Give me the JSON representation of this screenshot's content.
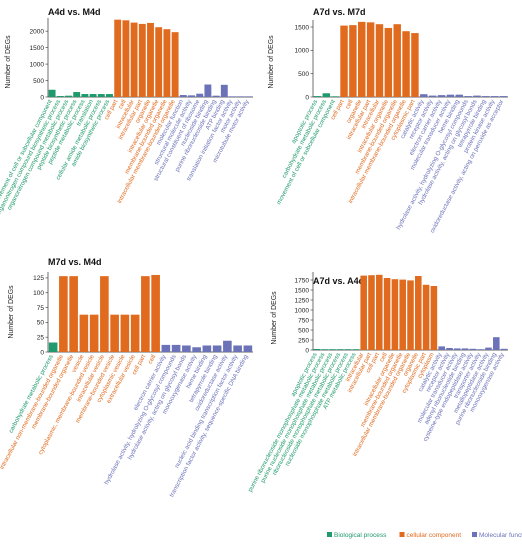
{
  "colors": {
    "bp": "#1f9a6c",
    "cc": "#e06b1f",
    "mf": "#6b72b8",
    "axis": "#333333"
  },
  "legend": [
    {
      "label": "Biological process",
      "key": "bp"
    },
    {
      "label": "cellular component",
      "key": "cc"
    },
    {
      "label": "Molecular function",
      "key": "mf"
    }
  ],
  "chart_data": [
    {
      "type": "bar",
      "title": "A4d vs. M4d",
      "ylabel": "Number of DEGs",
      "ylim": [
        0,
        2400
      ],
      "yticks": [
        0,
        500,
        1000,
        1500,
        2000
      ],
      "categories": [
        "movement of cell or subcellular component",
        "organonitrogen compound biosynthetic process",
        "organonitrogen compound metabolic process",
        "peptide biosynthetic process",
        "peptide metabolic process",
        "translation",
        "cellular amide metabolic process",
        "amide biosynthetic process",
        "cell part",
        "cell",
        "intracellular",
        "intracellular part",
        "organelle",
        "intracellular organelle",
        "membrane-bounded organelle",
        "intracellular membrane-bounded organelle",
        "molecular function",
        "structural molecule activity",
        "structural constituent of ribosome",
        "nucleoside binding",
        "purine ribonucleoside binding",
        "ATP binding",
        "translation initiation factor activity",
        "motor activity",
        "microtubule motor activity"
      ],
      "groups": [
        "bp",
        "bp",
        "bp",
        "bp",
        "bp",
        "bp",
        "bp",
        "bp",
        "cc",
        "cc",
        "cc",
        "cc",
        "cc",
        "cc",
        "cc",
        "cc",
        "mf",
        "mf",
        "mf",
        "mf",
        "mf",
        "mf",
        "mf",
        "mf",
        "mf"
      ],
      "values": [
        220,
        30,
        40,
        150,
        90,
        90,
        90,
        90,
        2350,
        2330,
        2260,
        2220,
        2250,
        2120,
        2060,
        1970,
        60,
        50,
        100,
        380,
        40,
        370,
        20,
        20,
        20
      ]
    },
    {
      "type": "bar",
      "title": "A7d vs. M7d",
      "ylabel": "Number of DEGs",
      "ylim": [
        0,
        1650
      ],
      "yticks": [
        0,
        500,
        1000,
        1500
      ],
      "categories": [
        "apoptotic process",
        "carbohydrate metabolic process",
        "movement of cell or subcellular component",
        "cell part",
        "cell",
        "organelle",
        "intracellular part",
        "intracellular",
        "intracellular organelle",
        "membrane-bounded organelle",
        "intracellular membrane-bounded organelle",
        "cytoplasmic part",
        "catalytic activity",
        "receptor activity",
        "electron carrier activity",
        "molecular transducer activity",
        "heme binding",
        "hydrolase activity, hydrolyzing O-glycosyl compounds",
        "hydrolase activity, acting on glycosyl bonds",
        "tetrapyrrole binding",
        "protein kinase activity",
        "oxidoreductase activity, acting on peroxide as acceptor"
      ],
      "groups": [
        "bp",
        "bp",
        "bp",
        "cc",
        "cc",
        "cc",
        "cc",
        "cc",
        "cc",
        "cc",
        "cc",
        "cc",
        "mf",
        "mf",
        "mf",
        "mf",
        "mf",
        "mf",
        "mf",
        "mf",
        "mf",
        "mf"
      ],
      "values": [
        20,
        80,
        15,
        1530,
        1540,
        1610,
        1600,
        1560,
        1480,
        1560,
        1410,
        1370,
        60,
        30,
        40,
        50,
        50,
        20,
        30,
        20,
        20,
        20
      ]
    },
    {
      "type": "bar",
      "title": "M7d vs. M4d",
      "ylabel": "Number of DEGs",
      "ylim": [
        0,
        135
      ],
      "yticks": [
        0,
        25,
        50,
        75,
        100,
        125
      ],
      "categories": [
        "carbohydrate metabolic process",
        "intracellular non-membrane-bounded organelle",
        "membrane-bounded organelle",
        "vesicle",
        "cytoplasmic, membrane-bounded vesicle",
        "intracellular vesicle",
        "membrane-bounded vesicle",
        "cytoplasmic vesicle",
        "extracellular vesicle",
        "cell part",
        "cell",
        "electron carrier activity",
        "hydrolase activity, hydrolyzing O-glycosyl compounds",
        "hydrolase activity, acting on glycosyl bonds",
        "monooxygenase activity",
        "heme binding",
        "tetrapyrrole binding",
        "oxidoreductase activity",
        "nucleic acid binding transcription factor activity",
        "transcription factor activity, sequence-specific DNA binding"
      ],
      "groups": [
        "bp",
        "cc",
        "cc",
        "cc",
        "cc",
        "cc",
        "cc",
        "cc",
        "cc",
        "cc",
        "cc",
        "mf",
        "mf",
        "mf",
        "mf",
        "mf",
        "mf",
        "mf",
        "mf",
        "mf"
      ],
      "values": [
        16,
        128,
        128,
        63,
        63,
        128,
        63,
        63,
        63,
        128,
        130,
        12,
        12,
        11,
        8,
        11,
        11,
        19,
        11,
        11
      ]
    },
    {
      "type": "bar",
      "title": "A7d vs. A4d",
      "ylabel": "Number of DEGs",
      "ylim": [
        0,
        1950
      ],
      "yticks": [
        0,
        250,
        500,
        750,
        1000,
        1250,
        1500,
        1750
      ],
      "categories": [
        "apoptotic process",
        "purine ribonucleoside monophosphate metabolic process",
        "purine nucleoside monophosphate metabolic process",
        "ribonucleoside monophosphate metabolic process",
        "nucleoside monophosphate metabolic process",
        "ATP metabolic process",
        "intracellular",
        "intracellular part",
        "cell part",
        "cell",
        "intracellular organelle",
        "membrane-bounded organelle",
        "intracellular membrane-bounded organelle",
        "organelle",
        "cytoplasmic part",
        "cytoplasm",
        "catalytic activity",
        "receptor activity",
        "molecular transducer activity",
        "adenyl ribonucleotide binding",
        "cysteine-type endopeptidase activity",
        "transporter activity",
        "metallopeptidase activity",
        "purine ribonucleoside binding",
        "monooxygenase activity"
      ],
      "groups": [
        "bp",
        "bp",
        "bp",
        "bp",
        "bp",
        "bp",
        "cc",
        "cc",
        "cc",
        "cc",
        "cc",
        "cc",
        "cc",
        "cc",
        "cc",
        "cc",
        "mf",
        "mf",
        "mf",
        "mf",
        "mf",
        "mf",
        "mf",
        "mf",
        "mf"
      ],
      "values": [
        25,
        20,
        20,
        20,
        20,
        20,
        1860,
        1870,
        1880,
        1800,
        1770,
        1760,
        1740,
        1850,
        1630,
        1600,
        90,
        50,
        40,
        40,
        30,
        20,
        60,
        320,
        30
      ]
    }
  ]
}
